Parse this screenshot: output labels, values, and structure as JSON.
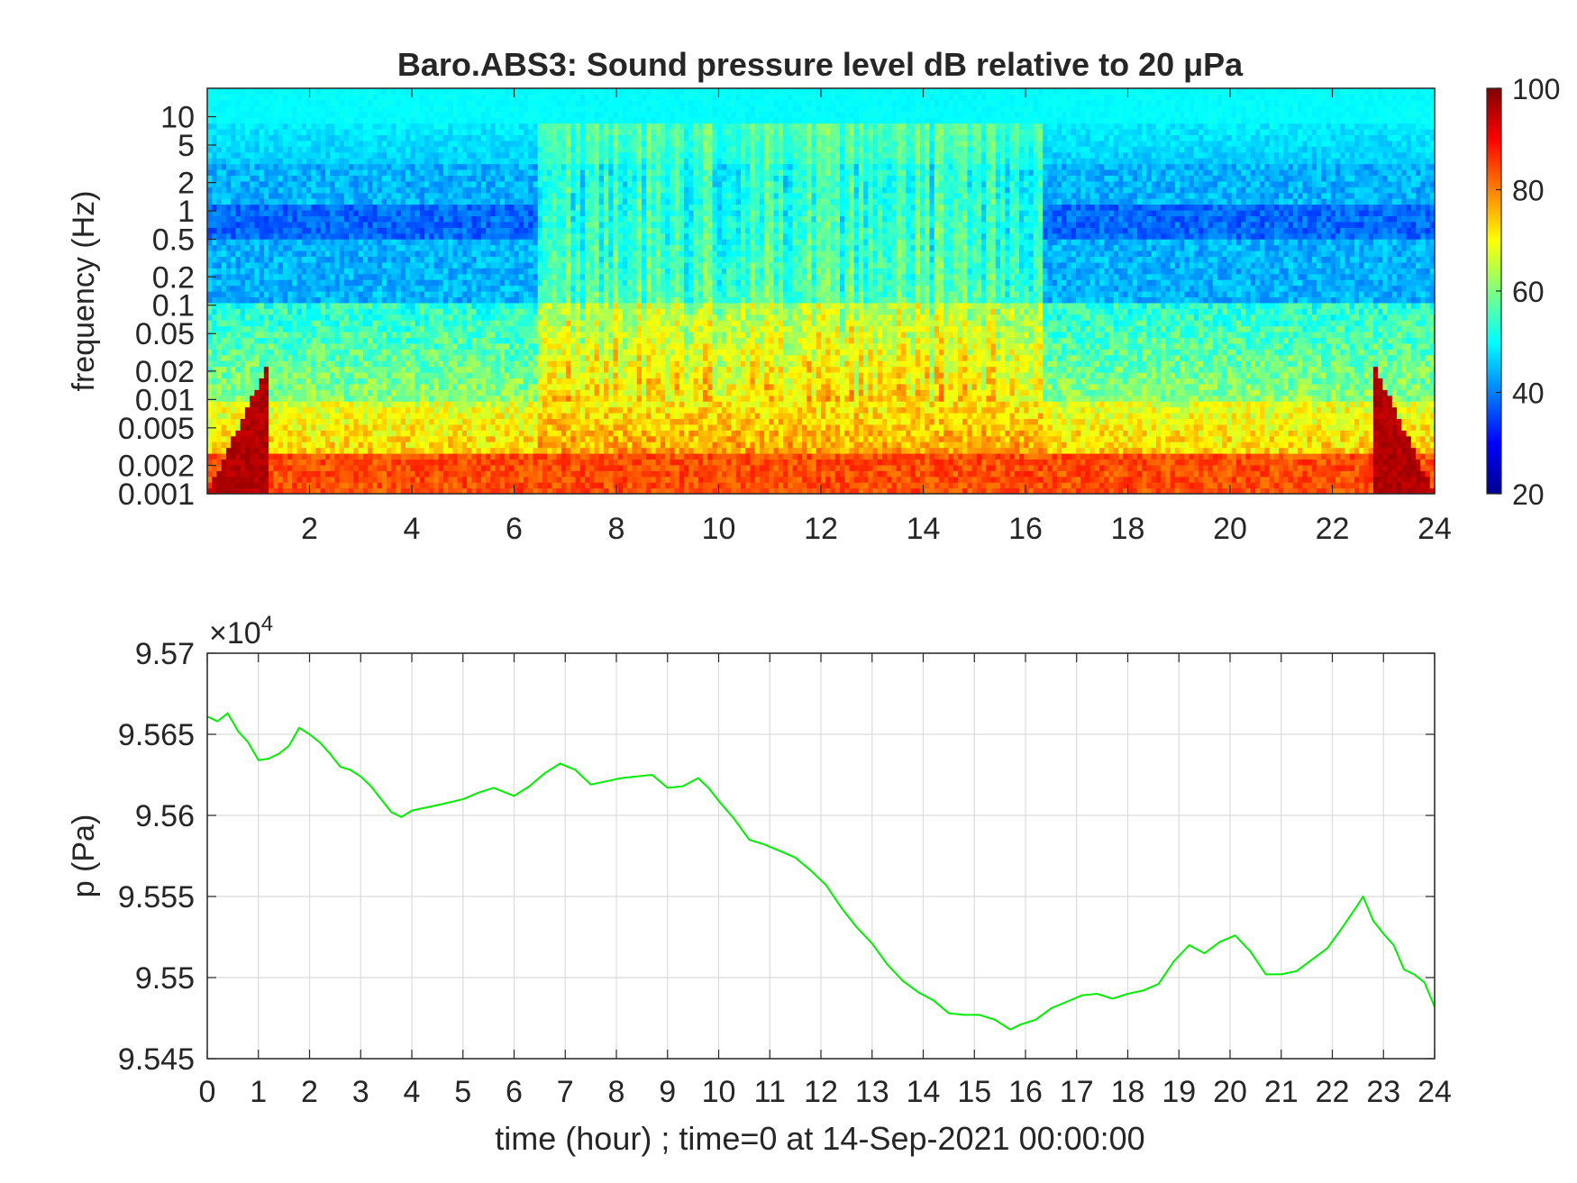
{
  "chart_data": [
    {
      "type": "heatmap",
      "title": "Baro.ABS3: Sound pressure level dB relative to 20 μPa",
      "xlabel": "",
      "ylabel": "frequency (Hz)",
      "xlim": [
        0,
        24
      ],
      "x_scale": "linear",
      "y_scale": "log",
      "ylim": [
        0.001,
        20
      ],
      "x_ticks": [
        "2",
        "4",
        "6",
        "8",
        "10",
        "12",
        "14",
        "16",
        "18",
        "20",
        "22",
        "24"
      ],
      "y_ticks": [
        {
          "value": 10,
          "label": "10"
        },
        {
          "value": 5,
          "label": "5"
        },
        {
          "value": 2,
          "label": "2"
        },
        {
          "value": 1,
          "label": "1"
        },
        {
          "value": 0.5,
          "label": "0.5"
        },
        {
          "value": 0.2,
          "label": "0.2"
        },
        {
          "value": 0.1,
          "label": "0.1"
        },
        {
          "value": 0.05,
          "label": "0.05"
        },
        {
          "value": 0.02,
          "label": "0.02"
        },
        {
          "value": 0.01,
          "label": "0.01"
        },
        {
          "value": 0.005,
          "label": "0.005"
        },
        {
          "value": 0.002,
          "label": "0.002"
        },
        {
          "value": 0.001,
          "label": "0.001"
        }
      ],
      "colormap": "jet",
      "clim": [
        20,
        100
      ],
      "colorbar_ticks": [
        "100",
        "80",
        "60",
        "40",
        "20"
      ],
      "active_period_hours": [
        6.5,
        16.3
      ],
      "grid": false
    },
    {
      "type": "line",
      "title": "",
      "xlabel": "time (hour) ; time=0 at 14-Sep-2021 00:00:00",
      "ylabel": "p (Pa)",
      "y_exponent_label": "×10",
      "y_exponent_power": "4",
      "xlim": [
        0,
        24
      ],
      "ylim": [
        9.545,
        9.57
      ],
      "x_ticks": [
        "0",
        "1",
        "2",
        "3",
        "4",
        "5",
        "6",
        "7",
        "8",
        "9",
        "10",
        "11",
        "12",
        "13",
        "14",
        "15",
        "16",
        "17",
        "18",
        "19",
        "20",
        "21",
        "22",
        "23",
        "24"
      ],
      "y_ticks": [
        "9.57",
        "9.565",
        "9.56",
        "9.555",
        "9.55",
        "9.545"
      ],
      "grid": true,
      "line_color": "#00ee00",
      "series": [
        {
          "x": [
            0,
            0.2,
            0.4,
            0.6,
            0.8,
            1.0,
            1.2,
            1.4,
            1.6,
            1.8,
            2.0,
            2.2,
            2.4,
            2.6,
            2.8,
            3.0,
            3.2,
            3.4,
            3.6,
            3.8,
            4.0,
            4.3,
            4.6,
            5.0,
            5.3,
            5.6,
            6.0,
            6.3,
            6.6,
            6.9,
            7.2,
            7.5,
            7.8,
            8.1,
            8.4,
            8.7,
            9.0,
            9.3,
            9.6,
            9.8,
            10.0,
            10.3,
            10.6,
            10.9,
            11.2,
            11.5,
            11.8,
            12.1,
            12.4,
            12.7,
            13.0,
            13.3,
            13.6,
            13.9,
            14.2,
            14.5,
            14.8,
            15.1,
            15.4,
            15.7,
            15.9,
            16.2,
            16.5,
            16.8,
            17.1,
            17.4,
            17.7,
            18.0,
            18.3,
            18.6,
            18.9,
            19.2,
            19.5,
            19.8,
            20.1,
            20.4,
            20.7,
            21.0,
            21.3,
            21.6,
            21.9,
            22.2,
            22.5,
            22.6,
            22.8,
            23.0,
            23.2,
            23.4,
            23.6,
            23.8,
            24.0
          ],
          "y": [
            9.5661,
            9.5658,
            9.5663,
            9.5652,
            9.5645,
            9.5634,
            9.5635,
            9.5638,
            9.5643,
            9.5654,
            9.565,
            9.5645,
            9.5638,
            9.563,
            9.5628,
            9.5624,
            9.5618,
            9.561,
            9.5602,
            9.5599,
            9.5603,
            9.5605,
            9.5607,
            9.561,
            9.5614,
            9.5617,
            9.5612,
            9.5618,
            9.5626,
            9.5632,
            9.5628,
            9.5619,
            9.5621,
            9.5623,
            9.5624,
            9.5625,
            9.5617,
            9.5618,
            9.5623,
            9.5617,
            9.5609,
            9.5598,
            9.5585,
            9.5582,
            9.5578,
            9.5574,
            9.5566,
            9.5557,
            9.5543,
            9.5531,
            9.5521,
            9.5508,
            9.5498,
            9.5491,
            9.5486,
            9.5478,
            9.5477,
            9.5477,
            9.5474,
            9.5468,
            9.5471,
            9.5474,
            9.5481,
            9.5485,
            9.5489,
            9.549,
            9.5487,
            9.549,
            9.5492,
            9.5496,
            9.551,
            9.552,
            9.5515,
            9.5522,
            9.5526,
            9.5516,
            9.5502,
            9.5502,
            9.5504,
            9.5511,
            9.5518,
            9.5531,
            9.5545,
            9.555,
            9.5535,
            9.5527,
            9.552,
            9.5505,
            9.5502,
            9.5497,
            9.5482
          ]
        }
      ]
    }
  ]
}
